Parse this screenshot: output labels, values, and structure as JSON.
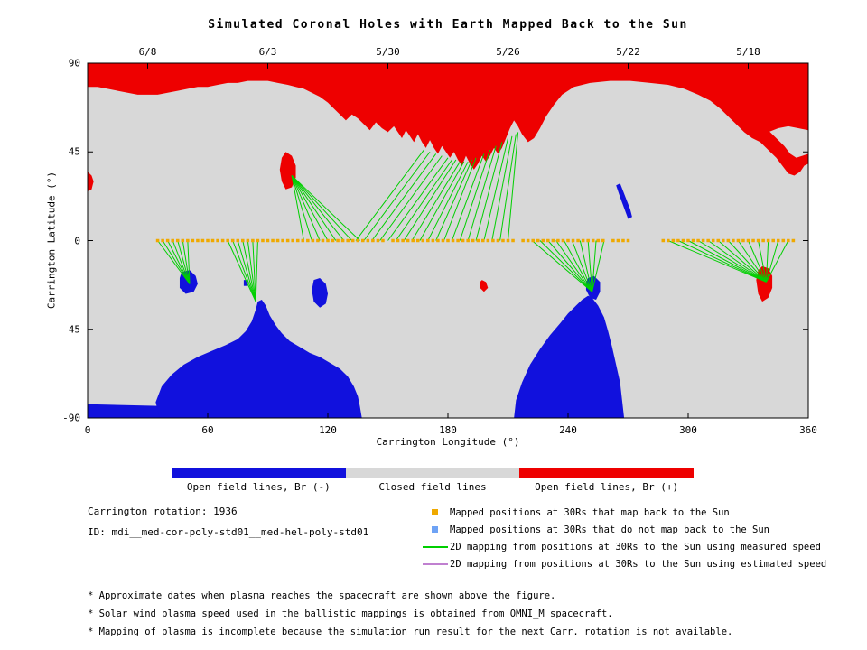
{
  "title": "Simulated Coronal Holes with Earth Mapped Back to the Sun",
  "info": {
    "rotation": "Carrington rotation: 1936",
    "id": "ID: mdi__med-cor-poly-std01__med-hel-poly-std01"
  },
  "legend_bar": {
    "segments": [
      {
        "label": "Open field lines, Br (-)",
        "color": "#1111dd"
      },
      {
        "label": "Closed field lines",
        "color": "#d8d8d8"
      },
      {
        "label": "Open field lines, Br (+)",
        "color": "#ee0000"
      }
    ]
  },
  "legend_items": [
    {
      "marker": "square",
      "color": "#efa900",
      "label": "Mapped positions at 30Rs that map back to the Sun"
    },
    {
      "marker": "square",
      "color": "#6ea3f5",
      "label": "Mapped positions at 30Rs that do not map back to the Sun"
    },
    {
      "marker": "line",
      "color": "#00cf00",
      "label": "2D mapping from positions at 30Rs to the Sun using measured speed"
    },
    {
      "marker": "line",
      "color": "#c080d0",
      "label": "2D mapping from positions at 30Rs to the Sun using estimated speed"
    }
  ],
  "footnotes": [
    "* Approximate dates when plasma reaches the spacecraft are shown above the figure.",
    "* Solar wind plasma speed used in the ballistic mappings is obtained from OMNI_M spacecraft.",
    "* Mapping of plasma is incomplete because the simulation run result for the next Carr. rotation is not available."
  ],
  "chart_data": {
    "type": "map",
    "title": "Simulated Coronal Holes with Earth Mapped Back to the Sun",
    "xlabel": "Carrington Longitude (°)",
    "ylabel": "Carrington Latitude (°)",
    "xlim": [
      0,
      360
    ],
    "ylim": [
      -90,
      90
    ],
    "x_ticks": [
      0,
      60,
      120,
      180,
      240,
      300,
      360
    ],
    "y_ticks": [
      90,
      45,
      0,
      -45,
      -90
    ],
    "top_axis_dates": [
      {
        "label": "6/8",
        "lon": 30
      },
      {
        "label": "6/3",
        "lon": 90
      },
      {
        "label": "5/30",
        "lon": 150
      },
      {
        "label": "5/26",
        "lon": 210
      },
      {
        "label": "5/22",
        "lon": 270
      },
      {
        "label": "5/18",
        "lon": 330
      }
    ],
    "colors": {
      "closed_field": "#d8d8d8",
      "open_field_negative": "#1111dd",
      "open_field_positive": "#ee0000",
      "mapping_measured": "#00cf00",
      "mapping_estimated": "#c080d0",
      "mapped_ok": "#efa900",
      "mapped_not": "#6ea3f5"
    },
    "red_polygons": [
      [
        [
          0,
          90
        ],
        [
          360,
          90
        ],
        [
          360,
          56
        ],
        [
          355,
          57
        ],
        [
          350,
          58
        ],
        [
          345,
          57
        ],
        [
          340,
          55
        ],
        [
          336,
          53
        ],
        [
          332,
          52
        ],
        [
          328,
          55
        ],
        [
          324,
          59
        ],
        [
          320,
          63
        ],
        [
          316,
          67
        ],
        [
          311,
          71
        ],
        [
          305,
          74
        ],
        [
          298,
          77
        ],
        [
          290,
          79
        ],
        [
          281,
          80
        ],
        [
          271,
          81
        ],
        [
          261,
          81
        ],
        [
          251,
          80
        ],
        [
          243,
          78
        ],
        [
          237,
          74
        ],
        [
          233,
          69
        ],
        [
          229,
          63
        ],
        [
          226,
          57
        ],
        [
          223,
          52
        ],
        [
          220,
          50
        ],
        [
          217,
          54
        ],
        [
          215,
          58
        ],
        [
          213,
          61
        ],
        [
          211,
          57
        ],
        [
          209,
          52
        ],
        [
          207,
          47
        ],
        [
          205,
          44
        ],
        [
          203,
          47
        ],
        [
          201,
          43
        ],
        [
          199,
          40
        ],
        [
          197,
          43
        ],
        [
          195,
          39
        ],
        [
          193,
          36
        ],
        [
          191,
          39
        ],
        [
          189,
          43
        ],
        [
          187,
          38
        ],
        [
          185,
          41
        ],
        [
          183,
          45
        ],
        [
          181,
          42
        ],
        [
          179,
          45
        ],
        [
          177,
          48
        ],
        [
          175,
          44
        ],
        [
          173,
          47
        ],
        [
          171,
          51
        ],
        [
          169,
          47
        ],
        [
          167,
          50
        ],
        [
          165,
          54
        ],
        [
          163,
          50
        ],
        [
          161,
          53
        ],
        [
          159,
          56
        ],
        [
          157,
          52
        ],
        [
          155,
          55
        ],
        [
          153,
          58
        ],
        [
          150,
          55
        ],
        [
          147,
          57
        ],
        [
          144,
          60
        ],
        [
          141,
          56
        ],
        [
          138,
          59
        ],
        [
          135,
          62
        ],
        [
          132,
          64
        ],
        [
          129,
          61
        ],
        [
          126,
          64
        ],
        [
          123,
          67
        ],
        [
          120,
          70
        ],
        [
          116,
          73
        ],
        [
          112,
          75
        ],
        [
          108,
          77
        ],
        [
          104,
          78
        ],
        [
          100,
          79
        ],
        [
          95,
          80
        ],
        [
          90,
          81
        ],
        [
          85,
          81
        ],
        [
          80,
          81
        ],
        [
          75,
          80
        ],
        [
          70,
          80
        ],
        [
          65,
          79
        ],
        [
          60,
          78
        ],
        [
          55,
          78
        ],
        [
          50,
          77
        ],
        [
          45,
          76
        ],
        [
          40,
          75
        ],
        [
          35,
          74
        ],
        [
          30,
          74
        ],
        [
          25,
          74
        ],
        [
          20,
          75
        ],
        [
          15,
          76
        ],
        [
          10,
          77
        ],
        [
          5,
          78
        ],
        [
          0,
          78
        ]
      ],
      [
        [
          332,
          52
        ],
        [
          336,
          50
        ],
        [
          340,
          46
        ],
        [
          344,
          42
        ],
        [
          347,
          38
        ],
        [
          350,
          34
        ],
        [
          353,
          33
        ],
        [
          356,
          35
        ],
        [
          358,
          38
        ],
        [
          360,
          39
        ],
        [
          360,
          44
        ],
        [
          357,
          43
        ],
        [
          354,
          42
        ],
        [
          351,
          44
        ],
        [
          348,
          48
        ],
        [
          344,
          52
        ],
        [
          340,
          56
        ],
        [
          336,
          58
        ],
        [
          332,
          58
        ],
        [
          329,
          55
        ]
      ],
      [
        [
          0,
          35
        ],
        [
          2,
          33
        ],
        [
          3,
          30
        ],
        [
          2,
          26
        ],
        [
          0,
          25
        ]
      ],
      [
        [
          99,
          45
        ],
        [
          102,
          43
        ],
        [
          104,
          38
        ],
        [
          104,
          32
        ],
        [
          102,
          27
        ],
        [
          99,
          26
        ],
        [
          97,
          30
        ],
        [
          96,
          36
        ],
        [
          97,
          42
        ]
      ],
      [
        [
          337,
          -13
        ],
        [
          340,
          -14
        ],
        [
          342,
          -18
        ],
        [
          342,
          -24
        ],
        [
          340,
          -29
        ],
        [
          337,
          -31
        ],
        [
          335,
          -27
        ],
        [
          334,
          -20
        ],
        [
          335,
          -15
        ]
      ],
      [
        [
          197,
          -20
        ],
        [
          199,
          -21
        ],
        [
          200,
          -24
        ],
        [
          198,
          -26
        ],
        [
          196,
          -24
        ],
        [
          196,
          -21
        ]
      ]
    ],
    "blue_polygons": [
      [
        [
          0,
          -83
        ],
        [
          40,
          -84
        ],
        [
          80,
          -86
        ],
        [
          110,
          -87
        ],
        [
          115,
          -90
        ],
        [
          0,
          -90
        ]
      ],
      [
        [
          36,
          -90
        ],
        [
          34,
          -82
        ],
        [
          37,
          -74
        ],
        [
          42,
          -68
        ],
        [
          48,
          -63
        ],
        [
          55,
          -59
        ],
        [
          62,
          -56
        ],
        [
          69,
          -53
        ],
        [
          75,
          -50
        ],
        [
          79,
          -46
        ],
        [
          82,
          -41
        ],
        [
          84,
          -35
        ],
        [
          85,
          -31
        ],
        [
          87,
          -30
        ],
        [
          89,
          -33
        ],
        [
          91,
          -38
        ],
        [
          94,
          -43
        ],
        [
          97,
          -47
        ],
        [
          101,
          -51
        ],
        [
          106,
          -54
        ],
        [
          111,
          -57
        ],
        [
          116,
          -59
        ],
        [
          121,
          -62
        ],
        [
          126,
          -65
        ],
        [
          130,
          -69
        ],
        [
          133,
          -74
        ],
        [
          135,
          -79
        ],
        [
          136,
          -84
        ],
        [
          137,
          -90
        ]
      ],
      [
        [
          213,
          -90
        ],
        [
          214,
          -81
        ],
        [
          217,
          -72
        ],
        [
          221,
          -63
        ],
        [
          226,
          -55
        ],
        [
          231,
          -48
        ],
        [
          236,
          -42
        ],
        [
          240,
          -37
        ],
        [
          244,
          -33
        ],
        [
          247,
          -30
        ],
        [
          250,
          -28
        ],
        [
          252,
          -29
        ],
        [
          255,
          -33
        ],
        [
          258,
          -39
        ],
        [
          260,
          -46
        ],
        [
          262,
          -54
        ],
        [
          264,
          -63
        ],
        [
          266,
          -72
        ],
        [
          267,
          -81
        ],
        [
          268,
          -90
        ]
      ],
      [
        [
          47,
          -16
        ],
        [
          51,
          -15
        ],
        [
          54,
          -18
        ],
        [
          55,
          -22
        ],
        [
          53,
          -26
        ],
        [
          49,
          -27
        ],
        [
          46,
          -24
        ],
        [
          46,
          -19
        ]
      ],
      [
        [
          113,
          -20
        ],
        [
          116,
          -19
        ],
        [
          119,
          -22
        ],
        [
          120,
          -27
        ],
        [
          119,
          -32
        ],
        [
          116,
          -34
        ],
        [
          113,
          -31
        ],
        [
          112,
          -25
        ]
      ],
      [
        [
          250,
          -19
        ],
        [
          253,
          -18
        ],
        [
          256,
          -21
        ],
        [
          256,
          -26
        ],
        [
          254,
          -30
        ],
        [
          251,
          -29
        ],
        [
          249,
          -25
        ],
        [
          249,
          -21
        ]
      ],
      [
        [
          264,
          28
        ],
        [
          266,
          29
        ],
        [
          271,
          16
        ],
        [
          272,
          12
        ],
        [
          270,
          11
        ],
        [
          266,
          22
        ]
      ],
      [
        [
          78,
          -20
        ],
        [
          80,
          -20
        ],
        [
          80,
          -23
        ],
        [
          78,
          -23
        ]
      ]
    ],
    "mapped_dot_lat": 0,
    "mapped_dot_ranges": [
      {
        "from": 35,
        "to": 147.5,
        "step": 2.5
      },
      {
        "from": 152.5,
        "to": 212.5,
        "step": 2.5
      },
      {
        "from": 217.5,
        "to": 257.5,
        "step": 2.5
      },
      {
        "from": 262.5,
        "to": 270,
        "step": 2.5
      },
      {
        "from": 287.5,
        "to": 352.5,
        "step": 2.5
      }
    ],
    "mapping_lines_measured": [
      [
        35,
        0,
        51,
        -22
      ],
      [
        37.5,
        0,
        51,
        -22
      ],
      [
        40,
        0,
        51,
        -22
      ],
      [
        42.5,
        0,
        51,
        -22
      ],
      [
        45,
        0,
        51,
        -22
      ],
      [
        47.5,
        0,
        51,
        -22
      ],
      [
        50,
        0,
        51,
        -22
      ],
      [
        70,
        0,
        84,
        -31
      ],
      [
        72.5,
        0,
        84,
        -31
      ],
      [
        75,
        0,
        84,
        -31
      ],
      [
        77.5,
        0,
        84,
        -31
      ],
      [
        80,
        0,
        84,
        -31
      ],
      [
        82.5,
        0,
        84,
        -31
      ],
      [
        85,
        0,
        84,
        -31
      ],
      [
        108,
        0,
        102,
        33
      ],
      [
        112,
        0,
        102,
        33
      ],
      [
        116,
        0,
        102,
        33
      ],
      [
        120,
        0,
        102,
        33
      ],
      [
        124,
        0,
        102,
        33
      ],
      [
        128,
        0,
        102,
        33
      ],
      [
        132,
        0,
        102,
        33
      ],
      [
        136,
        0,
        102,
        33
      ],
      [
        134,
        0,
        168,
        46
      ],
      [
        138,
        0,
        171,
        45
      ],
      [
        142,
        0,
        174,
        44
      ],
      [
        146,
        0,
        177,
        43
      ],
      [
        150,
        0,
        180,
        42
      ],
      [
        154,
        0,
        182,
        41
      ],
      [
        158,
        0,
        184,
        41
      ],
      [
        162,
        0,
        186,
        40
      ],
      [
        166,
        0,
        188,
        40
      ],
      [
        170,
        0,
        190,
        40
      ],
      [
        174,
        0,
        192,
        41
      ],
      [
        178,
        0,
        194,
        42
      ],
      [
        182,
        0,
        198,
        44
      ],
      [
        186,
        0,
        201,
        46
      ],
      [
        190,
        0,
        204,
        48
      ],
      [
        194,
        0,
        207,
        50
      ],
      [
        198,
        0,
        210,
        52
      ],
      [
        202,
        0,
        212,
        53
      ],
      [
        206,
        0,
        214,
        54
      ],
      [
        210,
        0,
        215,
        55
      ],
      [
        222,
        0,
        252,
        -26
      ],
      [
        226,
        0,
        252,
        -26
      ],
      [
        230,
        0,
        252,
        -26
      ],
      [
        234,
        0,
        252,
        -26
      ],
      [
        238,
        0,
        252,
        -26
      ],
      [
        242,
        0,
        252,
        -26
      ],
      [
        246,
        0,
        252,
        -26
      ],
      [
        250,
        0,
        252,
        -26
      ],
      [
        254,
        0,
        252,
        -26
      ],
      [
        258,
        0,
        252,
        -26
      ],
      [
        290,
        0,
        339,
        -21
      ],
      [
        295,
        0,
        339,
        -21
      ],
      [
        300,
        0,
        339,
        -21
      ],
      [
        305,
        0,
        339,
        -21
      ],
      [
        310,
        0,
        339,
        -21
      ],
      [
        315,
        0,
        339,
        -21
      ],
      [
        320,
        0,
        339,
        -21
      ],
      [
        325,
        0,
        339,
        -21
      ],
      [
        330,
        0,
        339,
        -21
      ],
      [
        335,
        0,
        339,
        -21
      ],
      [
        340,
        0,
        339,
        -21
      ],
      [
        345,
        0,
        339,
        -21
      ],
      [
        350,
        0,
        339,
        -21
      ]
    ],
    "mapping_lines_estimated": []
  }
}
